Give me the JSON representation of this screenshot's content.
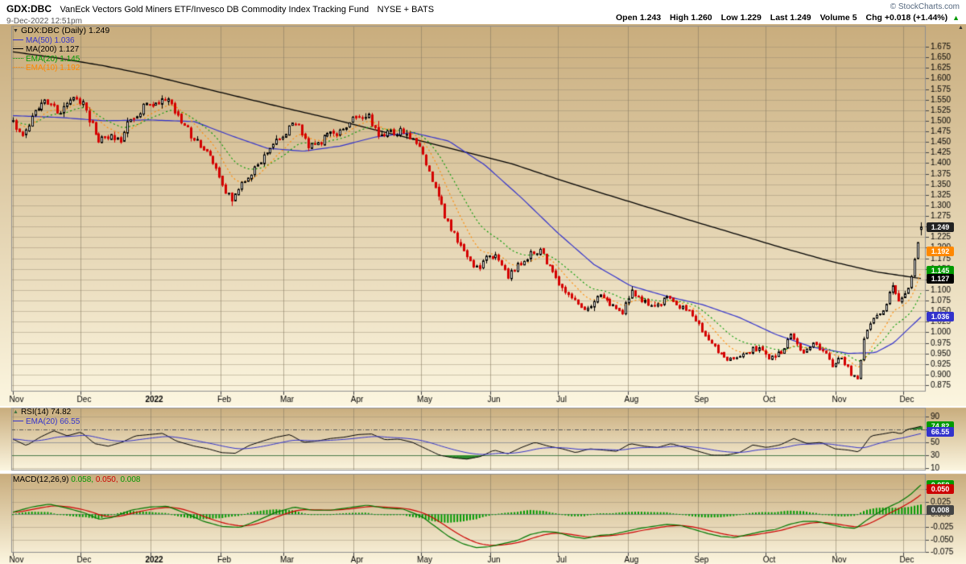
{
  "header": {
    "symbol": "GDX:DBC",
    "title": "VanEck Vectors Gold Miners ETF/Invesco DB Commodity Index Tracking Fund",
    "exchange": "NYSE + BATS",
    "copyright": "© StockCharts.com",
    "datetime": "9-Dec-2022 12:51pm",
    "quote": {
      "open_label": "Open",
      "open": "1.243",
      "high_label": "High",
      "high": "1.260",
      "low_label": "Low",
      "low": "1.229",
      "last_label": "Last",
      "last": "1.249",
      "volume_label": "Volume",
      "volume": "5",
      "chg_label": "Chg",
      "chg": "+0.018 (+1.44%)",
      "arrow_glyph": "▲",
      "arrow_color": "#009900"
    }
  },
  "main_panel": {
    "collapse_glyph": "▼",
    "axis_arrow_glyph": "▲",
    "legend_title": "GDX:DBC (Daily) 1.249",
    "overlays": [
      {
        "label": "MA(50) 1.036",
        "color": "#3333cc",
        "dash": "solid"
      },
      {
        "label": "MA(200) 1.127",
        "color": "#000000",
        "dash": "solid"
      },
      {
        "label": "EMA(20) 1.145",
        "color": "#009900",
        "dash": "dotted"
      },
      {
        "label": "EMA(10) 1.192",
        "color": "#ff8800",
        "dash": "dotted"
      }
    ]
  },
  "rsi_panel": {
    "icon_glyph": "▲",
    "icon_color": "#447744",
    "label": "RSI(14) 74.82",
    "ema_label": "EMA(20) 66.55",
    "ema_color": "#3333cc"
  },
  "macd_panel": {
    "label": "MACD(12,26,9)",
    "v1": "0.058,",
    "v1_color": "#009900",
    "v2": "0.050,",
    "v2_color": "#cc0000",
    "v3": "0.008",
    "v3_color": "#009900"
  },
  "chart_data": {
    "type": "candlestick",
    "symbol": "GDX:DBC",
    "timeframe": "Daily",
    "date_range": "Nov 2021 - 9 Dec 2022",
    "last_candle": {
      "open": 1.243,
      "high": 1.26,
      "low": 1.229,
      "close": 1.249
    },
    "quote": {
      "open": 1.243,
      "high": 1.26,
      "low": 1.229,
      "last": 1.249,
      "volume": 5,
      "change": 0.018,
      "change_pct": 1.44
    },
    "indicators_last": {
      "ma50": 1.036,
      "ma200": 1.127,
      "ema20": 1.145,
      "ema10": 1.192,
      "rsi14": 74.82,
      "rsi_ema20": 66.55,
      "macd": 0.058,
      "macd_signal": 0.05,
      "macd_hist": 0.008
    },
    "x_months": [
      "Nov",
      "Dec",
      "2022",
      "Feb",
      "Mar",
      "Apr",
      "May",
      "Jun",
      "Jul",
      "Aug",
      "Sep",
      "Oct",
      "Nov",
      "Dec"
    ],
    "month_fracs": [
      0,
      0.0744,
      0.1514,
      0.2283,
      0.2978,
      0.3747,
      0.4491,
      0.5261,
      0.6005,
      0.6774,
      0.7544,
      0.8288,
      0.9057,
      0.9801
    ],
    "main_y_ticks": [
      1.675,
      1.65,
      1.625,
      1.6,
      1.575,
      1.55,
      1.525,
      1.5,
      1.475,
      1.45,
      1.425,
      1.4,
      1.375,
      1.35,
      1.325,
      1.3,
      1.275,
      1.25,
      1.225,
      1.2,
      1.175,
      1.15,
      1.125,
      1.1,
      1.075,
      1.05,
      1.025,
      1.0,
      0.975,
      0.95,
      0.925,
      0.9,
      0.875
    ],
    "main_y_range": [
      0.862,
      1.725
    ],
    "rsi_y_ticks": [
      90,
      70,
      50,
      30,
      10
    ],
    "macd_y_ticks": [
      0.05,
      0.025,
      0.0,
      -0.025,
      -0.05,
      -0.075
    ],
    "price_anchors": [
      [
        0,
        1.5
      ],
      [
        0.01,
        1.465
      ],
      [
        0.022,
        1.51
      ],
      [
        0.035,
        1.55
      ],
      [
        0.05,
        1.52
      ],
      [
        0.062,
        1.545
      ],
      [
        0.075,
        1.55
      ],
      [
        0.085,
        1.5
      ],
      [
        0.095,
        1.448
      ],
      [
        0.105,
        1.465
      ],
      [
        0.118,
        1.452
      ],
      [
        0.13,
        1.508
      ],
      [
        0.145,
        1.532
      ],
      [
        0.16,
        1.538
      ],
      [
        0.17,
        1.552
      ],
      [
        0.185,
        1.5
      ],
      [
        0.2,
        1.455
      ],
      [
        0.215,
        1.43
      ],
      [
        0.228,
        1.36
      ],
      [
        0.24,
        1.312
      ],
      [
        0.252,
        1.355
      ],
      [
        0.265,
        1.385
      ],
      [
        0.278,
        1.425
      ],
      [
        0.29,
        1.455
      ],
      [
        0.3,
        1.468
      ],
      [
        0.312,
        1.5
      ],
      [
        0.325,
        1.445
      ],
      [
        0.338,
        1.452
      ],
      [
        0.35,
        1.47
      ],
      [
        0.365,
        1.48
      ],
      [
        0.378,
        1.508
      ],
      [
        0.39,
        1.515
      ],
      [
        0.402,
        1.47
      ],
      [
        0.415,
        1.468
      ],
      [
        0.428,
        1.478
      ],
      [
        0.44,
        1.455
      ],
      [
        0.452,
        1.418
      ],
      [
        0.465,
        1.335
      ],
      [
        0.478,
        1.265
      ],
      [
        0.49,
        1.215
      ],
      [
        0.502,
        1.165
      ],
      [
        0.512,
        1.147
      ],
      [
        0.522,
        1.185
      ],
      [
        0.532,
        1.178
      ],
      [
        0.545,
        1.132
      ],
      [
        0.558,
        1.16
      ],
      [
        0.57,
        1.185
      ],
      [
        0.582,
        1.19
      ],
      [
        0.595,
        1.135
      ],
      [
        0.608,
        1.1
      ],
      [
        0.62,
        1.072
      ],
      [
        0.632,
        1.05
      ],
      [
        0.645,
        1.095
      ],
      [
        0.658,
        1.065
      ],
      [
        0.67,
        1.042
      ],
      [
        0.682,
        1.095
      ],
      [
        0.695,
        1.075
      ],
      [
        0.708,
        1.06
      ],
      [
        0.72,
        1.08
      ],
      [
        0.732,
        1.065
      ],
      [
        0.745,
        1.045
      ],
      [
        0.758,
        1.01
      ],
      [
        0.77,
        0.968
      ],
      [
        0.782,
        0.942
      ],
      [
        0.795,
        0.93
      ],
      [
        0.808,
        0.955
      ],
      [
        0.82,
        0.962
      ],
      [
        0.832,
        0.94
      ],
      [
        0.845,
        0.95
      ],
      [
        0.858,
        0.995
      ],
      [
        0.87,
        0.95
      ],
      [
        0.882,
        0.97
      ],
      [
        0.892,
        0.955
      ],
      [
        0.902,
        0.922
      ],
      [
        0.912,
        0.945
      ],
      [
        0.922,
        0.905
      ],
      [
        0.93,
        0.89
      ],
      [
        0.938,
        0.99
      ],
      [
        0.948,
        1.04
      ],
      [
        0.958,
        1.052
      ],
      [
        0.968,
        1.105
      ],
      [
        0.978,
        1.072
      ],
      [
        0.988,
        1.12
      ],
      [
        0.994,
        1.18
      ],
      [
        1,
        1.249
      ]
    ],
    "ma50_anchors": [
      [
        0,
        1.512
      ],
      [
        0.05,
        1.508
      ],
      [
        0.1,
        1.5
      ],
      [
        0.15,
        1.502
      ],
      [
        0.2,
        1.498
      ],
      [
        0.24,
        1.465
      ],
      [
        0.28,
        1.435
      ],
      [
        0.32,
        1.428
      ],
      [
        0.36,
        1.44
      ],
      [
        0.4,
        1.462
      ],
      [
        0.44,
        1.472
      ],
      [
        0.48,
        1.452
      ],
      [
        0.52,
        1.395
      ],
      [
        0.56,
        1.318
      ],
      [
        0.6,
        1.235
      ],
      [
        0.64,
        1.16
      ],
      [
        0.68,
        1.11
      ],
      [
        0.72,
        1.085
      ],
      [
        0.76,
        1.065
      ],
      [
        0.8,
        1.035
      ],
      [
        0.84,
        0.995
      ],
      [
        0.88,
        0.965
      ],
      [
        0.92,
        0.95
      ],
      [
        0.95,
        0.952
      ],
      [
        0.97,
        0.975
      ],
      [
        1,
        1.036
      ]
    ],
    "ma200_anchors": [
      [
        0,
        1.663
      ],
      [
        0.05,
        1.648
      ],
      [
        0.1,
        1.63
      ],
      [
        0.15,
        1.608
      ],
      [
        0.2,
        1.582
      ],
      [
        0.25,
        1.556
      ],
      [
        0.3,
        1.53
      ],
      [
        0.35,
        1.505
      ],
      [
        0.4,
        1.478
      ],
      [
        0.45,
        1.452
      ],
      [
        0.5,
        1.425
      ],
      [
        0.55,
        1.398
      ],
      [
        0.6,
        1.362
      ],
      [
        0.65,
        1.328
      ],
      [
        0.7,
        1.295
      ],
      [
        0.75,
        1.262
      ],
      [
        0.8,
        1.23
      ],
      [
        0.85,
        1.198
      ],
      [
        0.9,
        1.168
      ],
      [
        0.95,
        1.143
      ],
      [
        1,
        1.127
      ]
    ],
    "rsi_anchors": [
      [
        0,
        55
      ],
      [
        0.015,
        45
      ],
      [
        0.03,
        58
      ],
      [
        0.045,
        68
      ],
      [
        0.06,
        60
      ],
      [
        0.075,
        66
      ],
      [
        0.09,
        48
      ],
      [
        0.105,
        44
      ],
      [
        0.12,
        50
      ],
      [
        0.135,
        60
      ],
      [
        0.15,
        62
      ],
      [
        0.165,
        64
      ],
      [
        0.18,
        52
      ],
      [
        0.2,
        44
      ],
      [
        0.215,
        40
      ],
      [
        0.23,
        34
      ],
      [
        0.245,
        33
      ],
      [
        0.26,
        45
      ],
      [
        0.275,
        52
      ],
      [
        0.29,
        58
      ],
      [
        0.305,
        62
      ],
      [
        0.32,
        50
      ],
      [
        0.335,
        52
      ],
      [
        0.35,
        56
      ],
      [
        0.365,
        58
      ],
      [
        0.38,
        62
      ],
      [
        0.395,
        63
      ],
      [
        0.41,
        54
      ],
      [
        0.425,
        55
      ],
      [
        0.44,
        50
      ],
      [
        0.455,
        40
      ],
      [
        0.47,
        30
      ],
      [
        0.485,
        26
      ],
      [
        0.5,
        24
      ],
      [
        0.515,
        28
      ],
      [
        0.53,
        38
      ],
      [
        0.545,
        32
      ],
      [
        0.56,
        42
      ],
      [
        0.575,
        50
      ],
      [
        0.59,
        44
      ],
      [
        0.605,
        40
      ],
      [
        0.62,
        34
      ],
      [
        0.635,
        40
      ],
      [
        0.65,
        38
      ],
      [
        0.665,
        36
      ],
      [
        0.68,
        48
      ],
      [
        0.695,
        44
      ],
      [
        0.71,
        42
      ],
      [
        0.725,
        48
      ],
      [
        0.74,
        42
      ],
      [
        0.755,
        36
      ],
      [
        0.77,
        30
      ],
      [
        0.785,
        30
      ],
      [
        0.8,
        34
      ],
      [
        0.815,
        46
      ],
      [
        0.83,
        42
      ],
      [
        0.845,
        46
      ],
      [
        0.86,
        56
      ],
      [
        0.875,
        48
      ],
      [
        0.89,
        50
      ],
      [
        0.905,
        40
      ],
      [
        0.92,
        38
      ],
      [
        0.932,
        35
      ],
      [
        0.945,
        60
      ],
      [
        0.958,
        63
      ],
      [
        0.97,
        66
      ],
      [
        0.978,
        63
      ],
      [
        0.985,
        70
      ],
      [
        0.992,
        72
      ],
      [
        1,
        74.82
      ]
    ],
    "macd_anchors": [
      [
        0,
        0.004
      ],
      [
        0.02,
        0.014
      ],
      [
        0.04,
        0.02
      ],
      [
        0.06,
        0.012
      ],
      [
        0.08,
        0.002
      ],
      [
        0.095,
        -0.01
      ],
      [
        0.11,
        -0.006
      ],
      [
        0.13,
        0.008
      ],
      [
        0.15,
        0.014
      ],
      [
        0.17,
        0.016
      ],
      [
        0.19,
        0.002
      ],
      [
        0.21,
        -0.014
      ],
      [
        0.23,
        -0.024
      ],
      [
        0.25,
        -0.026
      ],
      [
        0.27,
        -0.012
      ],
      [
        0.29,
        0.004
      ],
      [
        0.31,
        0.014
      ],
      [
        0.33,
        0.008
      ],
      [
        0.35,
        0.008
      ],
      [
        0.37,
        0.013
      ],
      [
        0.39,
        0.018
      ],
      [
        0.41,
        0.012
      ],
      [
        0.43,
        0.01
      ],
      [
        0.45,
        -0.004
      ],
      [
        0.465,
        -0.024
      ],
      [
        0.48,
        -0.044
      ],
      [
        0.495,
        -0.058
      ],
      [
        0.51,
        -0.066
      ],
      [
        0.525,
        -0.064
      ],
      [
        0.54,
        -0.058
      ],
      [
        0.555,
        -0.052
      ],
      [
        0.57,
        -0.04
      ],
      [
        0.585,
        -0.034
      ],
      [
        0.6,
        -0.036
      ],
      [
        0.615,
        -0.044
      ],
      [
        0.63,
        -0.048
      ],
      [
        0.645,
        -0.042
      ],
      [
        0.66,
        -0.04
      ],
      [
        0.675,
        -0.034
      ],
      [
        0.69,
        -0.028
      ],
      [
        0.705,
        -0.024
      ],
      [
        0.72,
        -0.02
      ],
      [
        0.735,
        -0.022
      ],
      [
        0.75,
        -0.03
      ],
      [
        0.765,
        -0.038
      ],
      [
        0.78,
        -0.044
      ],
      [
        0.795,
        -0.046
      ],
      [
        0.81,
        -0.04
      ],
      [
        0.825,
        -0.034
      ],
      [
        0.84,
        -0.03
      ],
      [
        0.855,
        -0.02
      ],
      [
        0.87,
        -0.014
      ],
      [
        0.885,
        -0.014
      ],
      [
        0.9,
        -0.02
      ],
      [
        0.915,
        -0.026
      ],
      [
        0.928,
        -0.028
      ],
      [
        0.94,
        -0.012
      ],
      [
        0.952,
        0.002
      ],
      [
        0.964,
        0.014
      ],
      [
        0.976,
        0.024
      ],
      [
        0.988,
        0.038
      ],
      [
        1,
        0.058
      ]
    ],
    "main_markers": [
      {
        "value": 1.249,
        "label": "1.249",
        "color": "#222222",
        "name": "last-price-marker"
      },
      {
        "value": 1.192,
        "label": "1.192",
        "color": "#ff8800",
        "name": "ema10-marker"
      },
      {
        "value": 1.145,
        "label": "1.145",
        "color": "#009900",
        "name": "ema20-marker"
      },
      {
        "value": 1.127,
        "label": "1.127",
        "color": "#000000",
        "name": "ma200-marker"
      },
      {
        "value": 1.036,
        "label": "1.036",
        "color": "#3333cc",
        "name": "ma50-marker"
      }
    ],
    "rsi_markers": [
      {
        "value": 74.82,
        "label": "74.82",
        "color": "#009900",
        "name": "rsi-marker"
      },
      {
        "value": 66.55,
        "label": "66.55",
        "color": "#3333cc",
        "name": "rsi-ema-marker"
      }
    ],
    "macd_markers": [
      {
        "value": 0.058,
        "label": "0.058",
        "color": "#009900",
        "name": "macd-marker"
      },
      {
        "value": 0.05,
        "label": "0.050",
        "color": "#cc0000",
        "name": "macd-signal-marker"
      },
      {
        "value": 0.008,
        "label": "0.008",
        "color": "#444444",
        "name": "macd-hist-marker"
      }
    ],
    "colors": {
      "bg_top": "#c9ad7d",
      "bg_bottom": "#fcf6e0",
      "candle_down": "#d40000",
      "candle_up": "#000000",
      "ma50": "#3333cc",
      "ma200": "#000000",
      "ema20": "#009900",
      "ema10": "#ff8800",
      "rsi_line": "#000000",
      "rsi_fill": "#2d8c2d",
      "macd_line": "#007700",
      "macd_signal": "#cc0000",
      "macd_hist": "#009900",
      "grid": "#968a70",
      "border": "#8f8f8f"
    }
  }
}
